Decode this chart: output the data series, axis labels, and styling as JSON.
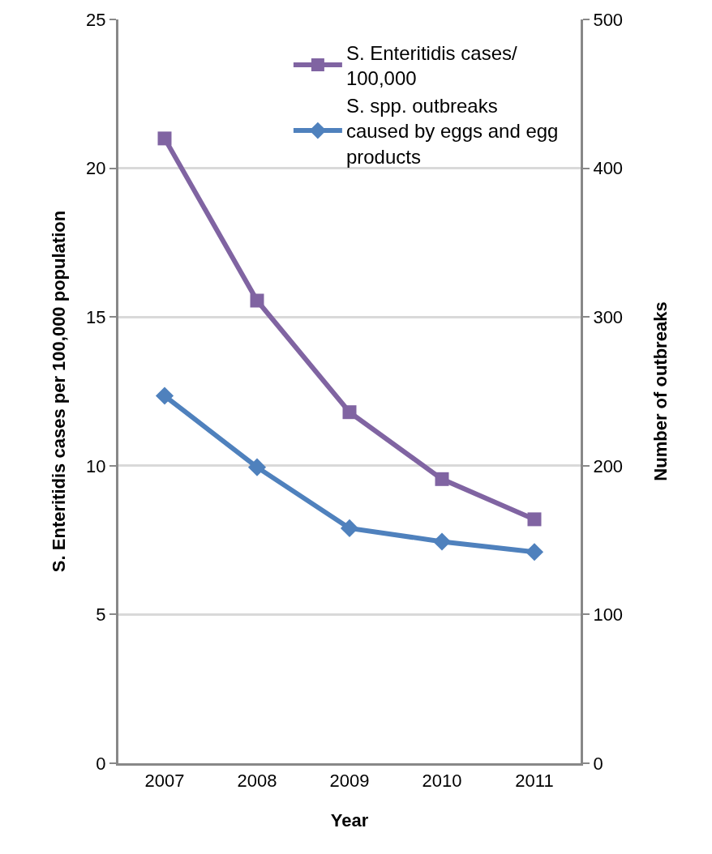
{
  "chart_data": {
    "type": "line",
    "xlabel": "Year",
    "ylabel": "S. Enteritidis cases per 100,000 population",
    "y2label": "Number of outbreaks",
    "categories": [
      "2007",
      "2008",
      "2009",
      "2010",
      "2011"
    ],
    "series": [
      {
        "name": "S. Enteritidis cases/ 100,000",
        "color": "#8064a2",
        "marker": "square",
        "values": [
          21.0,
          15.55,
          11.8,
          9.55,
          8.2
        ]
      },
      {
        "name": "S. spp. outbreaks caused by eggs and egg products",
        "color": "#4f81bd",
        "marker": "diamond",
        "axis": "y2",
        "values": [
          247,
          199,
          158,
          149,
          142
        ]
      }
    ],
    "ylim": [
      0,
      25
    ],
    "yticks": [
      0,
      5,
      10,
      15,
      20,
      25
    ],
    "y2lim": [
      0,
      500
    ],
    "y2ticks": [
      0,
      100,
      200,
      300,
      400,
      500
    ],
    "grid": "y",
    "legend": "top right",
    "line_style": "solid"
  }
}
